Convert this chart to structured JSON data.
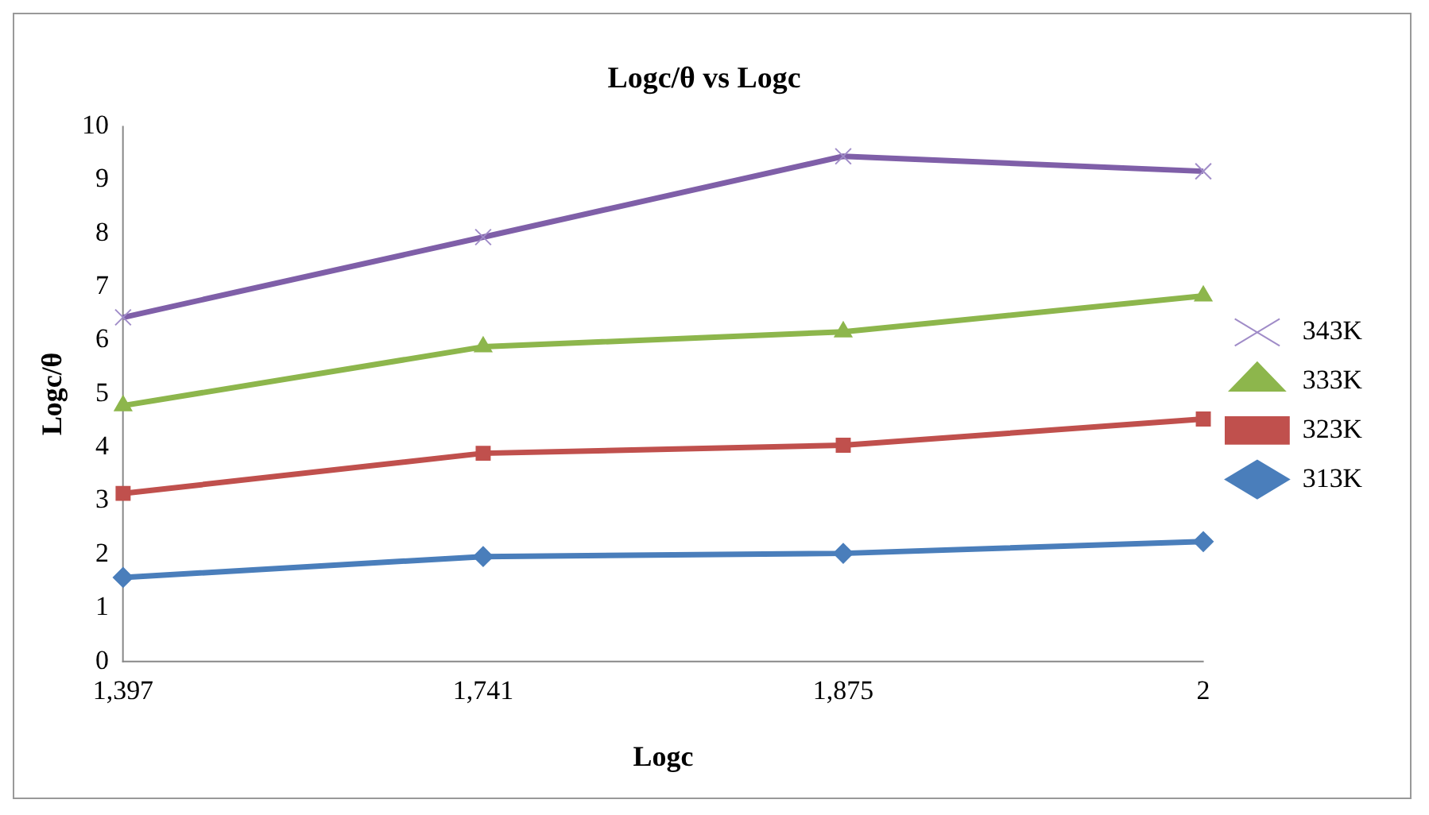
{
  "chart_data": {
    "type": "line",
    "title": "Logc/θ vs Logc",
    "xlabel": "Logc",
    "ylabel": "Logc/θ",
    "categories": [
      "1,397",
      "1,741",
      "1,875",
      "2"
    ],
    "series": [
      {
        "name": "343K",
        "color": "#7f5fa8",
        "marker": "cross",
        "values": [
          6.43,
          7.93,
          9.44,
          9.16
        ]
      },
      {
        "name": "333K",
        "color": "#8db64c",
        "marker": "triangle",
        "values": [
          4.78,
          5.88,
          6.16,
          6.83
        ]
      },
      {
        "name": "323K",
        "color": "#c0504d",
        "marker": "square",
        "values": [
          3.14,
          3.89,
          4.04,
          4.53
        ]
      },
      {
        "name": "313K",
        "color": "#4a7ebb",
        "marker": "diamond",
        "values": [
          1.57,
          1.96,
          2.02,
          2.24
        ]
      }
    ],
    "ylim": [
      0,
      10
    ],
    "yticks": [
      0,
      1,
      2,
      3,
      4,
      5,
      6,
      7,
      8,
      9,
      10
    ],
    "grid": false,
    "legend": "right",
    "line_style": "solid"
  }
}
